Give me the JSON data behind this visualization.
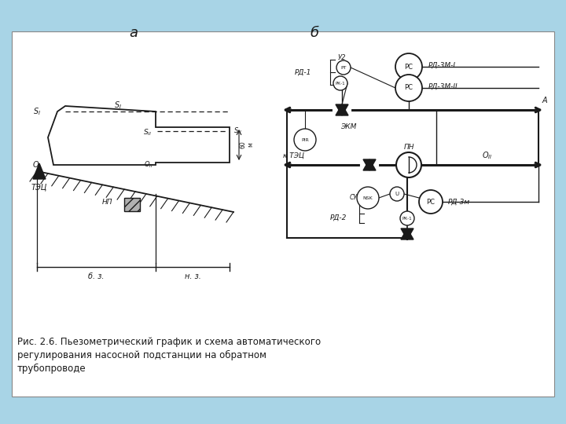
{
  "bg_color": "#a8d4e6",
  "white_bg": "#ffffff",
  "line_color": "#1a1a1a",
  "caption_line1": "Рис. 2.6. Пьезометрический график и схема автоматического",
  "caption_line2": "регулирования насосной подстанции на обратном",
  "caption_line3": "трубопроводе"
}
